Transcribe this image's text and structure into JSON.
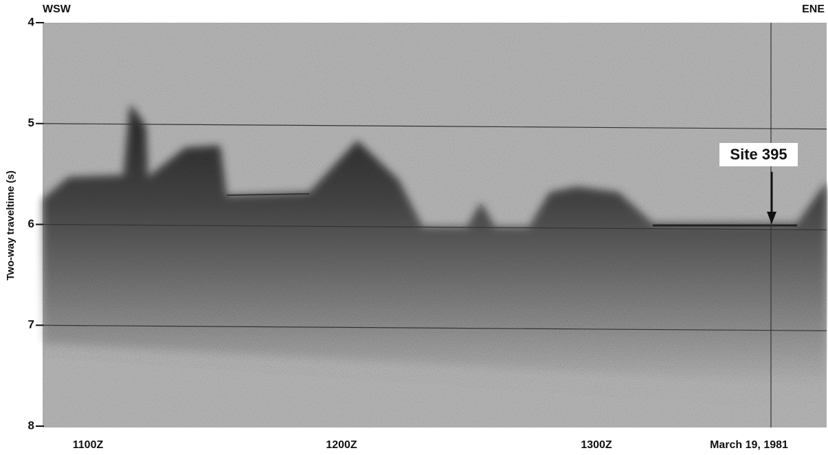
{
  "header": {
    "left": "WSW",
    "right": "ENE"
  },
  "axis": {
    "label": "Two-way traveltime (s)",
    "ylim": [
      4,
      8
    ],
    "yticks": [
      4,
      5,
      6,
      7,
      8
    ]
  },
  "xlabels": [
    "1100Z",
    "1200Z",
    "1300Z",
    "March 19, 1981"
  ],
  "annotation": "Site 395"
}
